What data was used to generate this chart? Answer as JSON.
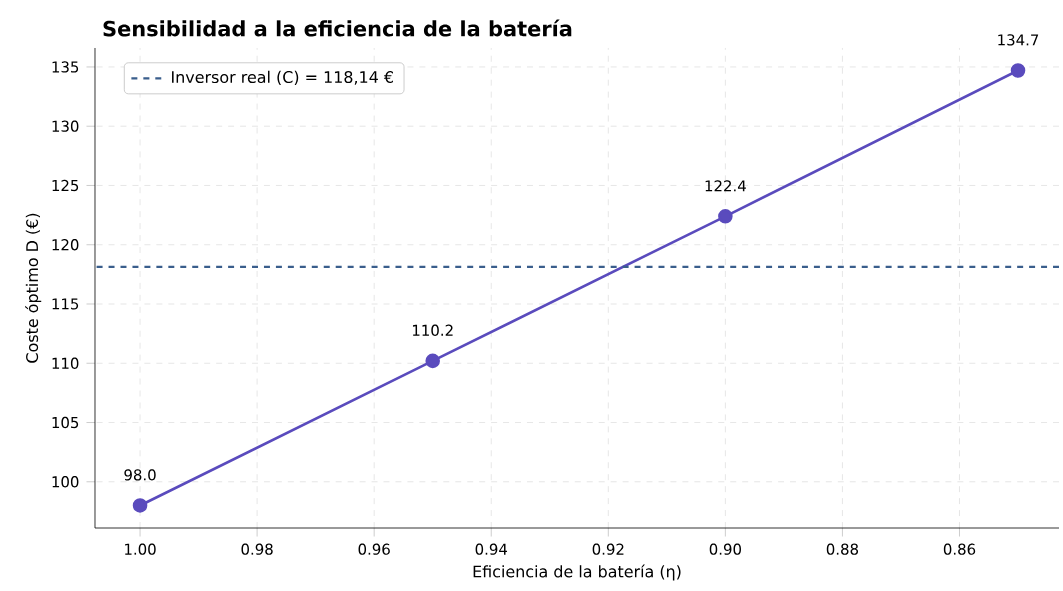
{
  "chart_data": {
    "type": "line",
    "title": "Sensibilidad a la eficiencia de la batería",
    "xlabel": "Eficiencia de la batería (η)",
    "ylabel": "Coste óptimo D (€)",
    "x": [
      1.0,
      0.95,
      0.9,
      0.85
    ],
    "series": [
      {
        "color": "#5a4bbd",
        "values": [
          98.0,
          110.2,
          122.4,
          134.7
        ],
        "value_labels": [
          "98.0",
          "110.2",
          "122.4",
          "134.7"
        ]
      }
    ],
    "marker": "circle",
    "line_style": "solid",
    "grid": true,
    "legend": "top left",
    "xlim": [
      1.0077,
      0.843
    ],
    "ylim": [
      96.1,
      136.6
    ],
    "xticks": [
      {
        "value": 1.0,
        "label": "1.00"
      },
      {
        "value": 0.98,
        "label": "0.98"
      },
      {
        "value": 0.96,
        "label": "0.96"
      },
      {
        "value": 0.94,
        "label": "0.94"
      },
      {
        "value": 0.92,
        "label": "0.92"
      },
      {
        "value": 0.9,
        "label": "0.90"
      },
      {
        "value": 0.88,
        "label": "0.88"
      },
      {
        "value": 0.86,
        "label": "0.86"
      }
    ],
    "yticks": [
      100,
      105,
      110,
      115,
      120,
      125,
      130,
      135
    ],
    "ref_lines": [
      {
        "axis": "y",
        "value": 118.14,
        "label": "Inversor real (C) = 118,14 €",
        "color": "#3a5e8c",
        "line_style": "dashed"
      }
    ]
  }
}
